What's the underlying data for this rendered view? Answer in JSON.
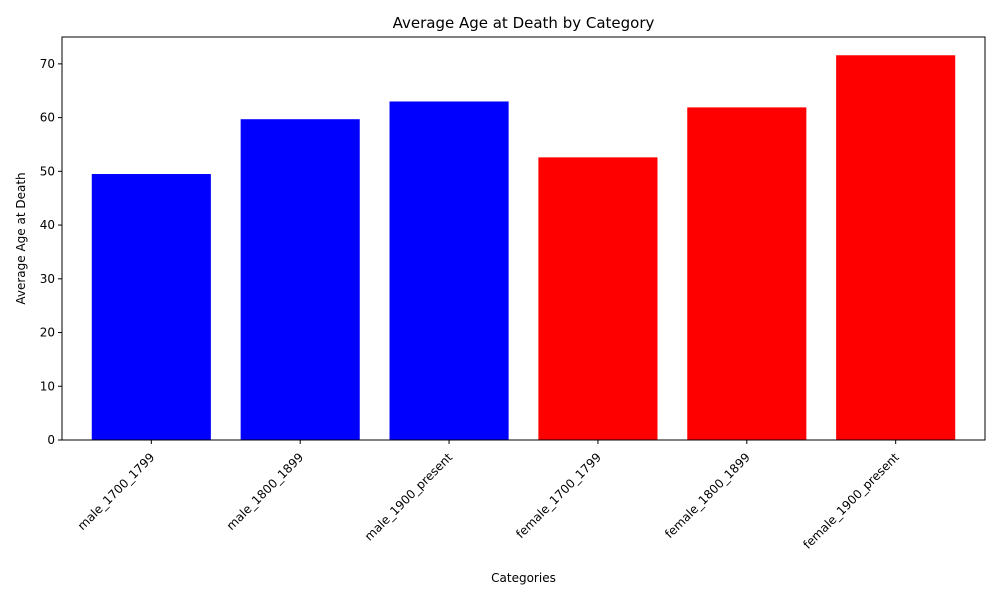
{
  "chart_data": {
    "type": "bar",
    "title": "Average Age at Death by Category",
    "xlabel": "Categories",
    "ylabel": "Average Age at Death",
    "categories": [
      "male_1700_1799",
      "male_1800_1899",
      "male_1900_present",
      "female_1700_1799",
      "female_1800_1899",
      "female_1900_present"
    ],
    "values": [
      49.5,
      59.7,
      63.0,
      52.6,
      61.9,
      71.6
    ],
    "colors": [
      "#0000ff",
      "#0000ff",
      "#0000ff",
      "#ff0000",
      "#ff0000",
      "#ff0000"
    ],
    "ylim": [
      0,
      75
    ],
    "yticks": [
      0,
      10,
      20,
      30,
      40,
      50,
      60,
      70
    ],
    "grid": false,
    "legend": "none"
  }
}
